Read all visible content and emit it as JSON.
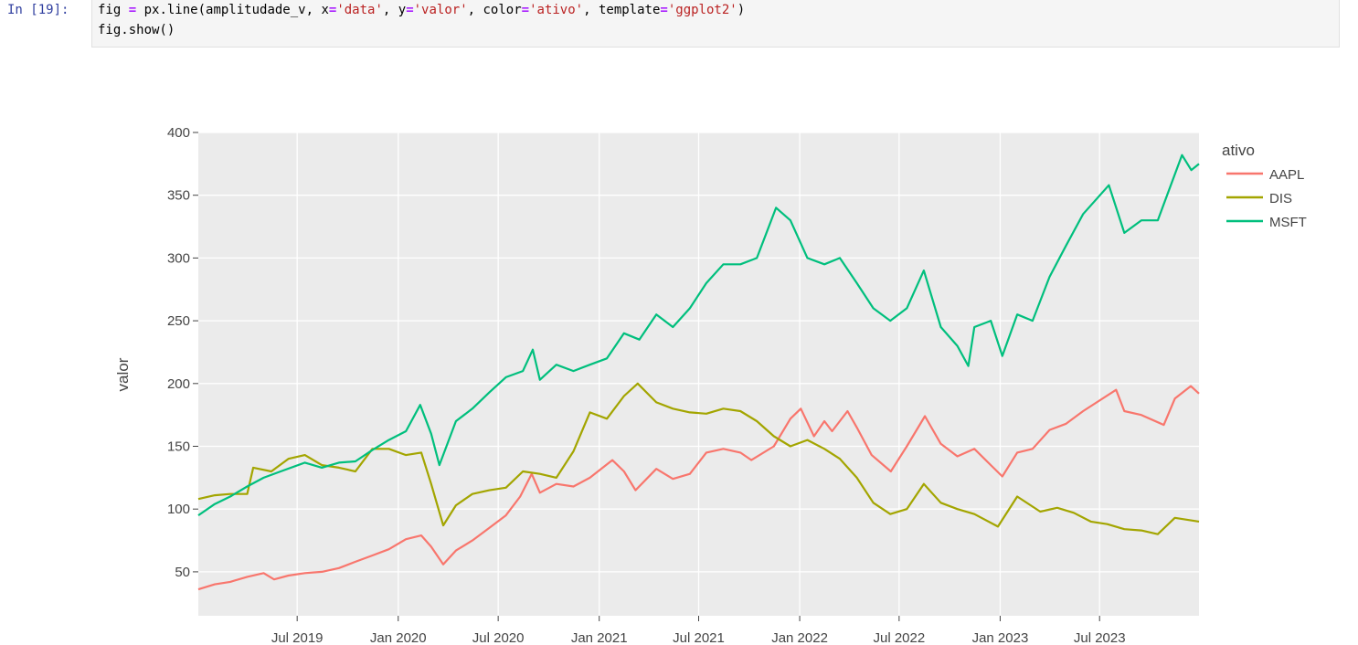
{
  "cell": {
    "prompt": "In [19]:",
    "code_line1_parts": [
      "fig ",
      "=",
      " px.line(amplitudade_v, x",
      "=",
      "'data'",
      ", y",
      "=",
      "'valor'",
      ", color",
      "=",
      "'ativo'",
      ", template",
      "=",
      "'ggplot2'",
      ")"
    ],
    "code_line2": "fig.show()"
  },
  "chart_data": {
    "type": "line",
    "template": "ggplot2",
    "ylabel": "valor",
    "xlabel": "",
    "legend_title": "ativo",
    "legend_position": "top-right",
    "ylim": [
      15,
      400
    ],
    "xlim": [
      "2019-01-02",
      "2023-12-29"
    ],
    "yticks": [
      50,
      100,
      150,
      200,
      250,
      300,
      350,
      400
    ],
    "xticks": [
      {
        "date": "2019-07-01",
        "label": "Jul 2019"
      },
      {
        "date": "2020-01-01",
        "label": "Jan 2020"
      },
      {
        "date": "2020-07-01",
        "label": "Jul 2020"
      },
      {
        "date": "2021-01-01",
        "label": "Jan 2021"
      },
      {
        "date": "2021-07-01",
        "label": "Jul 2021"
      },
      {
        "date": "2022-01-01",
        "label": "Jan 2022"
      },
      {
        "date": "2022-07-01",
        "label": "Jul 2022"
      },
      {
        "date": "2023-01-01",
        "label": "Jan 2023"
      },
      {
        "date": "2023-07-01",
        "label": "Jul 2023"
      }
    ],
    "grid": true,
    "background": "#ebebeb",
    "series": [
      {
        "name": "AAPL",
        "color": "#F8766D",
        "points": [
          [
            "2019-01-02",
            36
          ],
          [
            "2019-02-01",
            40
          ],
          [
            "2019-03-01",
            42
          ],
          [
            "2019-04-01",
            46
          ],
          [
            "2019-05-01",
            49
          ],
          [
            "2019-05-20",
            44
          ],
          [
            "2019-06-15",
            47
          ],
          [
            "2019-07-15",
            49
          ],
          [
            "2019-08-15",
            50
          ],
          [
            "2019-09-15",
            53
          ],
          [
            "2019-10-15",
            58
          ],
          [
            "2019-11-15",
            63
          ],
          [
            "2019-12-15",
            68
          ],
          [
            "2020-01-15",
            76
          ],
          [
            "2020-02-12",
            79
          ],
          [
            "2020-03-01",
            70
          ],
          [
            "2020-03-23",
            56
          ],
          [
            "2020-04-15",
            67
          ],
          [
            "2020-05-15",
            75
          ],
          [
            "2020-06-15",
            85
          ],
          [
            "2020-07-15",
            95
          ],
          [
            "2020-08-10",
            110
          ],
          [
            "2020-08-31",
            128
          ],
          [
            "2020-09-15",
            113
          ],
          [
            "2020-10-15",
            120
          ],
          [
            "2020-11-15",
            118
          ],
          [
            "2020-12-15",
            125
          ],
          [
            "2021-01-25",
            139
          ],
          [
            "2021-02-15",
            130
          ],
          [
            "2021-03-08",
            115
          ],
          [
            "2021-04-15",
            132
          ],
          [
            "2021-05-15",
            124
          ],
          [
            "2021-06-15",
            128
          ],
          [
            "2021-07-15",
            145
          ],
          [
            "2021-08-15",
            148
          ],
          [
            "2021-09-15",
            145
          ],
          [
            "2021-10-05",
            139
          ],
          [
            "2021-11-15",
            150
          ],
          [
            "2021-12-15",
            172
          ],
          [
            "2022-01-03",
            180
          ],
          [
            "2022-01-27",
            158
          ],
          [
            "2022-02-15",
            170
          ],
          [
            "2022-03-01",
            162
          ],
          [
            "2022-03-29",
            178
          ],
          [
            "2022-04-15",
            165
          ],
          [
            "2022-05-12",
            143
          ],
          [
            "2022-06-16",
            130
          ],
          [
            "2022-07-15",
            150
          ],
          [
            "2022-08-17",
            174
          ],
          [
            "2022-09-15",
            152
          ],
          [
            "2022-10-15",
            142
          ],
          [
            "2022-11-15",
            148
          ],
          [
            "2022-12-15",
            135
          ],
          [
            "2023-01-05",
            126
          ],
          [
            "2023-02-01",
            145
          ],
          [
            "2023-03-01",
            148
          ],
          [
            "2023-04-01",
            163
          ],
          [
            "2023-05-01",
            168
          ],
          [
            "2023-06-01",
            178
          ],
          [
            "2023-07-31",
            195
          ],
          [
            "2023-08-15",
            178
          ],
          [
            "2023-09-15",
            175
          ],
          [
            "2023-10-26",
            167
          ],
          [
            "2023-11-15",
            188
          ],
          [
            "2023-12-14",
            198
          ],
          [
            "2023-12-29",
            192
          ]
        ]
      },
      {
        "name": "DIS",
        "color": "#A3A500",
        "points": [
          [
            "2019-01-02",
            108
          ],
          [
            "2019-02-01",
            111
          ],
          [
            "2019-03-01",
            112
          ],
          [
            "2019-04-01",
            112
          ],
          [
            "2019-04-12",
            133
          ],
          [
            "2019-05-15",
            130
          ],
          [
            "2019-06-15",
            140
          ],
          [
            "2019-07-15",
            143
          ],
          [
            "2019-08-15",
            135
          ],
          [
            "2019-09-15",
            133
          ],
          [
            "2019-10-15",
            130
          ],
          [
            "2019-11-15",
            148
          ],
          [
            "2019-12-15",
            148
          ],
          [
            "2020-01-15",
            143
          ],
          [
            "2020-02-12",
            145
          ],
          [
            "2020-03-01",
            120
          ],
          [
            "2020-03-23",
            87
          ],
          [
            "2020-04-15",
            103
          ],
          [
            "2020-05-15",
            112
          ],
          [
            "2020-06-15",
            115
          ],
          [
            "2020-07-15",
            117
          ],
          [
            "2020-08-15",
            130
          ],
          [
            "2020-09-15",
            128
          ],
          [
            "2020-10-15",
            125
          ],
          [
            "2020-11-15",
            146
          ],
          [
            "2020-12-15",
            177
          ],
          [
            "2021-01-15",
            172
          ],
          [
            "2021-02-15",
            190
          ],
          [
            "2021-03-12",
            200
          ],
          [
            "2021-04-15",
            185
          ],
          [
            "2021-05-15",
            180
          ],
          [
            "2021-06-15",
            177
          ],
          [
            "2021-07-15",
            176
          ],
          [
            "2021-08-15",
            180
          ],
          [
            "2021-09-15",
            178
          ],
          [
            "2021-10-15",
            170
          ],
          [
            "2021-11-15",
            158
          ],
          [
            "2021-12-15",
            150
          ],
          [
            "2022-01-15",
            155
          ],
          [
            "2022-02-15",
            148
          ],
          [
            "2022-03-15",
            140
          ],
          [
            "2022-04-15",
            125
          ],
          [
            "2022-05-15",
            105
          ],
          [
            "2022-06-15",
            96
          ],
          [
            "2022-07-15",
            100
          ],
          [
            "2022-08-15",
            120
          ],
          [
            "2022-09-15",
            105
          ],
          [
            "2022-10-15",
            100
          ],
          [
            "2022-11-15",
            96
          ],
          [
            "2022-12-28",
            86
          ],
          [
            "2023-02-01",
            110
          ],
          [
            "2023-03-15",
            98
          ],
          [
            "2023-04-15",
            101
          ],
          [
            "2023-05-15",
            97
          ],
          [
            "2023-06-15",
            90
          ],
          [
            "2023-07-15",
            88
          ],
          [
            "2023-08-15",
            84
          ],
          [
            "2023-09-15",
            83
          ],
          [
            "2023-10-15",
            80
          ],
          [
            "2023-11-15",
            93
          ],
          [
            "2023-12-29",
            90
          ]
        ]
      },
      {
        "name": "MSFT",
        "color": "#00BF7D",
        "points": [
          [
            "2019-01-02",
            95
          ],
          [
            "2019-02-01",
            104
          ],
          [
            "2019-03-01",
            110
          ],
          [
            "2019-04-01",
            118
          ],
          [
            "2019-05-01",
            125
          ],
          [
            "2019-06-01",
            130
          ],
          [
            "2019-07-15",
            137
          ],
          [
            "2019-08-15",
            133
          ],
          [
            "2019-09-15",
            137
          ],
          [
            "2019-10-15",
            138
          ],
          [
            "2019-11-15",
            147
          ],
          [
            "2019-12-15",
            155
          ],
          [
            "2020-01-15",
            162
          ],
          [
            "2020-02-10",
            183
          ],
          [
            "2020-03-01",
            160
          ],
          [
            "2020-03-16",
            135
          ],
          [
            "2020-04-15",
            170
          ],
          [
            "2020-05-15",
            180
          ],
          [
            "2020-06-15",
            193
          ],
          [
            "2020-07-15",
            205
          ],
          [
            "2020-08-15",
            210
          ],
          [
            "2020-09-02",
            227
          ],
          [
            "2020-09-15",
            203
          ],
          [
            "2020-10-15",
            215
          ],
          [
            "2020-11-15",
            210
          ],
          [
            "2020-12-15",
            215
          ],
          [
            "2021-01-15",
            220
          ],
          [
            "2021-02-15",
            240
          ],
          [
            "2021-03-15",
            235
          ],
          [
            "2021-04-15",
            255
          ],
          [
            "2021-05-15",
            245
          ],
          [
            "2021-06-15",
            260
          ],
          [
            "2021-07-15",
            280
          ],
          [
            "2021-08-15",
            295
          ],
          [
            "2021-09-15",
            295
          ],
          [
            "2021-10-15",
            300
          ],
          [
            "2021-11-19",
            340
          ],
          [
            "2021-12-15",
            330
          ],
          [
            "2022-01-15",
            300
          ],
          [
            "2022-02-15",
            295
          ],
          [
            "2022-03-15",
            300
          ],
          [
            "2022-04-15",
            280
          ],
          [
            "2022-05-15",
            260
          ],
          [
            "2022-06-15",
            250
          ],
          [
            "2022-07-15",
            260
          ],
          [
            "2022-08-15",
            290
          ],
          [
            "2022-09-15",
            245
          ],
          [
            "2022-10-15",
            230
          ],
          [
            "2022-11-04",
            214
          ],
          [
            "2022-11-15",
            245
          ],
          [
            "2022-12-15",
            250
          ],
          [
            "2023-01-05",
            222
          ],
          [
            "2023-02-01",
            255
          ],
          [
            "2023-03-01",
            250
          ],
          [
            "2023-04-01",
            285
          ],
          [
            "2023-05-01",
            310
          ],
          [
            "2023-06-01",
            335
          ],
          [
            "2023-07-18",
            358
          ],
          [
            "2023-08-15",
            320
          ],
          [
            "2023-09-15",
            330
          ],
          [
            "2023-10-15",
            330
          ],
          [
            "2023-11-28",
            382
          ],
          [
            "2023-12-15",
            370
          ],
          [
            "2023-12-29",
            375
          ]
        ]
      }
    ]
  }
}
